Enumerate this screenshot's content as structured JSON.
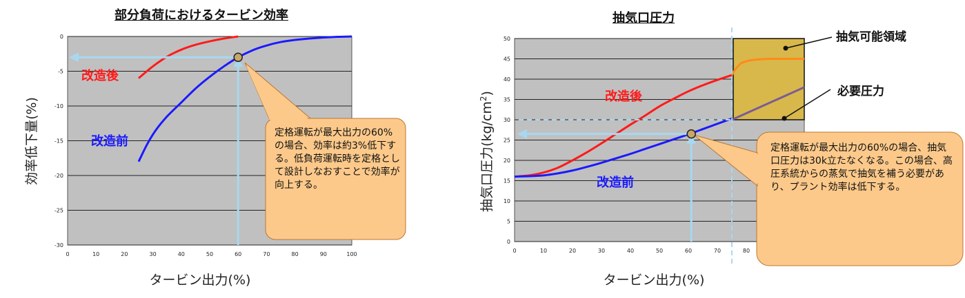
{
  "chart_data": [
    {
      "type": "line",
      "title": "部分負荷におけるタービン効率",
      "xlabel": "タービン出力(%)",
      "ylabel": "効率低下量(%)",
      "xlim": [
        0,
        100
      ],
      "ylim": [
        -30,
        0
      ],
      "xticks": [
        "0",
        "10",
        "20",
        "30",
        "40",
        "50",
        "60",
        "70",
        "80",
        "90",
        "100"
      ],
      "yticks": [
        "0",
        "-5",
        "-10",
        "-15",
        "-20",
        "-25",
        "-30"
      ],
      "series": [
        {
          "name": "改造後",
          "color": "#ff1a1a",
          "x": [
            25,
            30,
            35,
            40,
            45,
            50,
            55,
            60
          ],
          "y": [
            -6.0,
            -4.3,
            -2.9,
            -1.9,
            -1.2,
            -0.7,
            -0.3,
            0.0
          ]
        },
        {
          "name": "改造前",
          "color": "#1a1aff",
          "x": [
            25,
            28,
            31,
            35,
            40,
            45,
            50,
            55,
            60,
            65,
            70,
            75,
            80,
            85,
            90,
            95,
            100
          ],
          "y": [
            -18.0,
            -15.5,
            -13.5,
            -11.5,
            -9.5,
            -7.5,
            -5.8,
            -4.3,
            -3.0,
            -2.0,
            -1.3,
            -0.8,
            -0.5,
            -0.3,
            -0.15,
            -0.05,
            0.0
          ]
        }
      ],
      "marker": {
        "x": 60,
        "y": -3.0
      },
      "callout": "定格運転が最大出力の60%の場合、効率は約3%低下する。低負荷運転時を定格として設計しなおすことで効率が向上する。"
    },
    {
      "type": "line",
      "title": "抽気口圧力",
      "xlabel": "タービン出力(%)",
      "ylabel": "抽気口圧力(kg/cm2)",
      "xlim": [
        0,
        100
      ],
      "ylim": [
        0,
        50
      ],
      "xticks": [
        "0",
        "10",
        "20",
        "30",
        "40",
        "50",
        "60",
        "70",
        "80"
      ],
      "yticks": [
        "0",
        "5",
        "10",
        "15",
        "20",
        "25",
        "30",
        "35",
        "40",
        "45",
        "50"
      ],
      "series": [
        {
          "name": "改造後",
          "color": "#ff1a1a",
          "x": [
            0,
            5,
            10,
            15,
            20,
            25,
            30,
            35,
            40,
            45,
            50,
            55,
            60,
            65,
            70,
            75
          ],
          "y": [
            16.0,
            16.3,
            17.0,
            18.2,
            20.0,
            22.0,
            24.2,
            26.5,
            28.8,
            31.0,
            33.3,
            35.2,
            37.0,
            38.5,
            39.8,
            41.0
          ]
        },
        {
          "name": "改造前",
          "color": "#1a1aff",
          "x": [
            0,
            5,
            10,
            15,
            20,
            25,
            30,
            35,
            40,
            45,
            50,
            55,
            60,
            65,
            70,
            75
          ],
          "y": [
            16.0,
            16.1,
            16.3,
            16.8,
            17.5,
            18.4,
            19.4,
            20.5,
            21.6,
            22.8,
            24.0,
            25.2,
            26.4,
            27.7,
            29.0,
            30.3
          ]
        },
        {
          "name": "改造後(抽気可能領域)",
          "color": "#ff8a1a",
          "x": [
            75,
            76,
            78,
            80,
            82,
            85,
            88,
            92,
            95,
            100
          ],
          "y": [
            41.0,
            42.2,
            43.8,
            44.4,
            44.7,
            44.9,
            45.0,
            45.0,
            45.0,
            45.0
          ]
        },
        {
          "name": "必要圧力",
          "color": "#7a5c96",
          "x": [
            75,
            100
          ],
          "y": [
            30.0,
            38.0
          ]
        }
      ],
      "region": {
        "name": "抽気可能領域",
        "x": [
          75,
          100
        ],
        "y": [
          30,
          50
        ],
        "color": "#d8b84a"
      },
      "marker": {
        "x": 61,
        "y": 26.5
      },
      "labels": {
        "region": "抽気可能領域",
        "required": "必要圧力"
      },
      "callout": "定格運転が最大出力の60%の場合、抽気口圧力は30k立たなくなる。この場合、高圧系統からの蒸気で抽気を補う必要があり、プラント効率は低下する。"
    }
  ],
  "legend_left": {
    "after": "改造後",
    "before": "改造前"
  },
  "legend_right": {
    "after": "改造後",
    "before": "改造前"
  },
  "colors": {
    "plot_bg": "#c0c0c0",
    "arrow": "#a8d8f0",
    "callout_bg": "#fcc98a",
    "callout_border": "#bb7733"
  }
}
